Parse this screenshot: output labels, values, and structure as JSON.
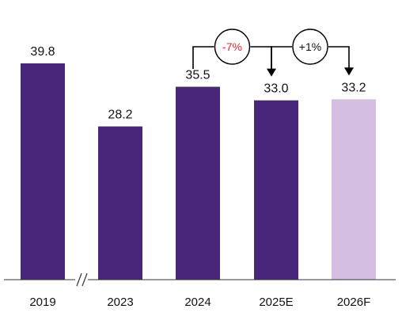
{
  "chart_data": {
    "type": "bar",
    "categories": [
      "2019",
      "2023",
      "2024",
      "2025E",
      "2026F"
    ],
    "values": [
      39.8,
      28.2,
      35.5,
      33.0,
      33.2
    ],
    "value_labels": [
      "39.8",
      "28.2",
      "35.5",
      "33.0",
      "33.2"
    ],
    "bar_colors": [
      "#48267A",
      "#48267A",
      "#48267A",
      "#48267A",
      "#D4BFE3"
    ],
    "title": "",
    "xlabel": "",
    "ylabel": "",
    "ylim": [
      0,
      39.8
    ],
    "axis_break": {
      "between": [
        "2019",
        "2023"
      ]
    },
    "annotations": [
      {
        "from": "2024",
        "to": "2025E",
        "label": "-7%",
        "color": "#E32B2B"
      },
      {
        "from": "2025E",
        "to": "2026F",
        "label": "+1%",
        "color": "#111111"
      }
    ],
    "grid": false,
    "legend": "none"
  },
  "colors": {
    "axis": "#333333",
    "text": "#111111"
  }
}
